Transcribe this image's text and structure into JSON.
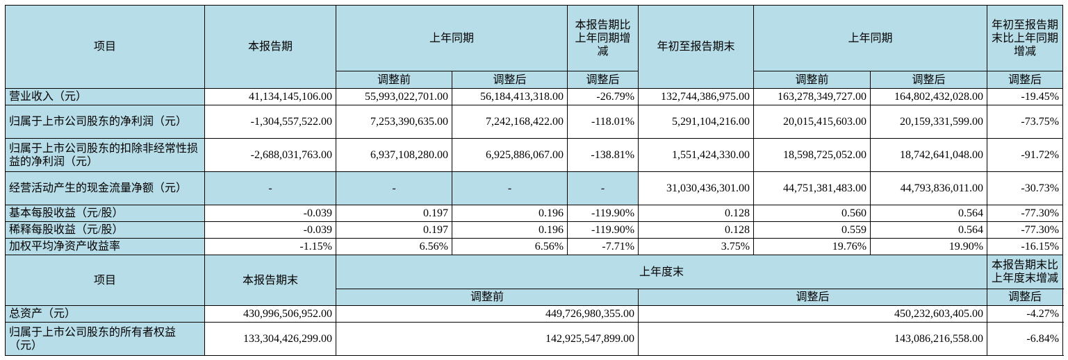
{
  "quarter_table": {
    "header": {
      "item": "项目",
      "current_period": "本报告期",
      "prior_year_same_period": "上年同期",
      "current_vs_prior_change": "本报告期比上年同期增减",
      "ytd": "年初至报告期末",
      "prior_year_same_period_ytd": "上年同期",
      "ytd_vs_prior_change": "年初至报告期末比上年同期增减",
      "before_adjustment": "调整前",
      "after_adjustment": "调整后",
      "after_adjustment_change": "调整后",
      "before_adjustment_ytd": "调整前",
      "after_adjustment_ytd": "调整后",
      "after_adjustment_change_ytd": "调整后"
    },
    "rows": [
      {
        "label": "营业收入（元）",
        "current": "41,134,145,106.00",
        "prior_before": "55,993,022,701.00",
        "prior_after": "56,184,413,318.00",
        "change": "-26.79%",
        "ytd": "132,744,386,975.00",
        "ytd_prior_before": "163,278,349,727.00",
        "ytd_prior_after": "164,802,432,028.00",
        "ytd_change": "-19.45%"
      },
      {
        "label": "归属于上市公司股东的净利润（元）",
        "current": "-1,304,557,522.00",
        "prior_before": "7,253,390,635.00",
        "prior_after": "7,242,168,422.00",
        "change": "-118.01%",
        "ytd": "5,291,104,216.00",
        "ytd_prior_before": "20,015,415,603.00",
        "ytd_prior_after": "20,159,331,599.00",
        "ytd_change": "-73.75%"
      },
      {
        "label": "归属于上市公司股东的扣除非经常性损益的净利润（元）",
        "current": "-2,688,031,763.00",
        "prior_before": "6,937,108,280.00",
        "prior_after": "6,925,886,067.00",
        "change": "-138.81%",
        "ytd": "1,551,424,330.00",
        "ytd_prior_before": "18,598,725,052.00",
        "ytd_prior_after": "18,742,641,048.00",
        "ytd_change": "-91.72%"
      },
      {
        "label": "经营活动产生的现金流量净额（元）",
        "current": "-",
        "prior_before": "-",
        "prior_after": "-",
        "change": "-",
        "ytd": "31,030,436,301.00",
        "ytd_prior_before": "44,751,381,483.00",
        "ytd_prior_after": "44,793,836,011.00",
        "ytd_change": "-30.73%"
      },
      {
        "label": "基本每股收益（元/股）",
        "current": "-0.039",
        "prior_before": "0.197",
        "prior_after": "0.196",
        "change": "-119.90%",
        "ytd": "0.128",
        "ytd_prior_before": "0.560",
        "ytd_prior_after": "0.564",
        "ytd_change": "-77.30%"
      },
      {
        "label": "稀释每股收益（元/股）",
        "current": "-0.039",
        "prior_before": "0.197",
        "prior_after": "0.196",
        "change": "-119.90%",
        "ytd": "0.128",
        "ytd_prior_before": "0.559",
        "ytd_prior_after": "0.564",
        "ytd_change": "-77.30%"
      },
      {
        "label": "加权平均净资产收益率",
        "current": "-1.15%",
        "prior_before": "6.56%",
        "prior_after": "6.56%",
        "change": "-7.71%",
        "ytd": "3.75%",
        "ytd_prior_before": "19.76%",
        "ytd_prior_after": "19.90%",
        "ytd_change": "-16.15%"
      }
    ]
  },
  "balance_table": {
    "header": {
      "item": "项目",
      "current_period_end": "本报告期末",
      "prior_year_end": "上年度末",
      "change_vs_prior_year_end": "本报告期末比上年度末增减",
      "before_adjustment": "调整前",
      "after_adjustment": "调整后",
      "after_adjustment_change": "调整后"
    },
    "rows": [
      {
        "label": "总资产（元）",
        "current": "430,996,506,952.00",
        "before": "449,726,980,355.00",
        "after": "450,232,603,405.00",
        "change": "-4.27%"
      },
      {
        "label": "归属于上市公司股东的所有者权益（元）",
        "current": "133,304,426,299.00",
        "before": "142,925,547,899.00",
        "after": "143,086,216,558.00",
        "change": "-6.84%"
      }
    ]
  },
  "colors": {
    "header_bg": "#b7dde8",
    "border": "#000000"
  }
}
